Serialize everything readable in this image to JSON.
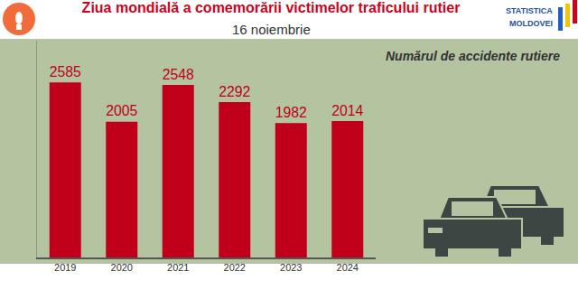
{
  "chart_data": {
    "type": "bar",
    "title": "Ziua mondială a comemorării victimelor traficului rutier",
    "subtitle": "16 noiembrie",
    "annotations": [
      "Numărul de accidente rutiere",
      "STATISTICA",
      "MOLDOVEI"
    ],
    "categories": [
      "2019",
      "2020",
      "2021",
      "2022",
      "2023",
      "2024"
    ],
    "values": [
      2585,
      2005,
      2548,
      2292,
      1982,
      2014
    ],
    "color": "#c0001a",
    "ylim": [
      0,
      3200
    ],
    "yticks": [],
    "grid": false,
    "data_labels": true,
    "tick_labels": "x"
  }
}
